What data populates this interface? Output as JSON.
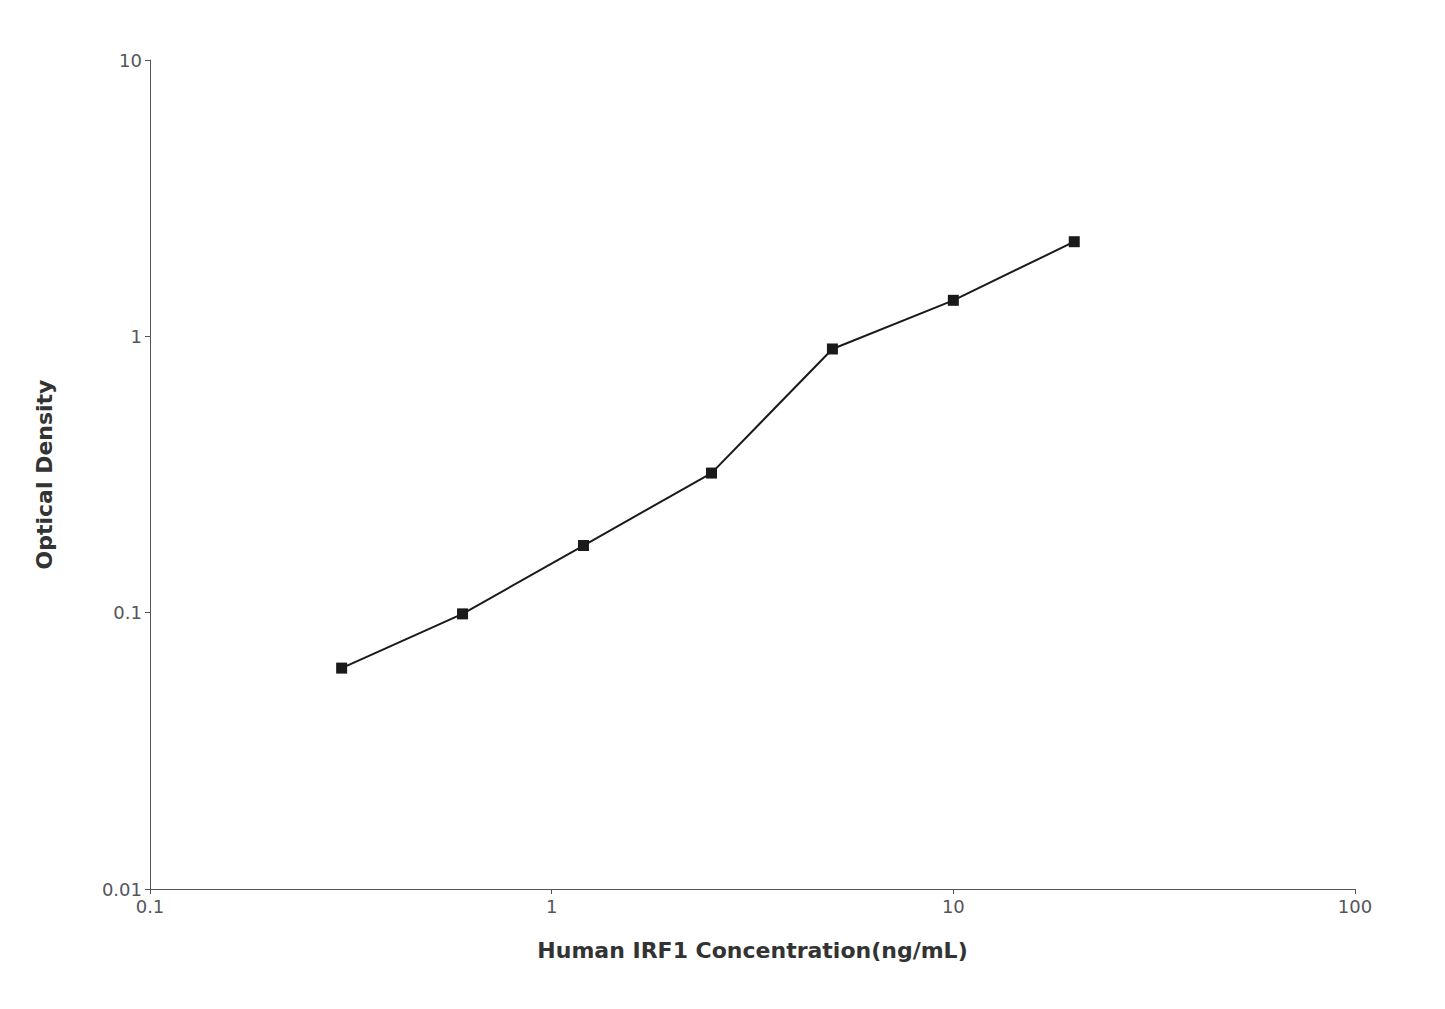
{
  "chart_data": {
    "type": "line",
    "x": [
      0.3,
      0.6,
      1.2,
      2.5,
      5.0,
      10.0,
      20.0
    ],
    "values": [
      0.063,
      0.099,
      0.175,
      0.32,
      0.9,
      1.35,
      2.2
    ],
    "xlabel": "Human IRF1 Concentration(ng/mL)",
    "ylabel": "Optical Density",
    "xlim": [
      0.1,
      100
    ],
    "ylim": [
      0.01,
      10
    ],
    "xticks": [
      0.1,
      1,
      10,
      100
    ],
    "yticks": [
      0.01,
      0.1,
      1,
      10
    ],
    "log": true,
    "grid": false,
    "color": "#1a1a1a",
    "marker": "square"
  }
}
